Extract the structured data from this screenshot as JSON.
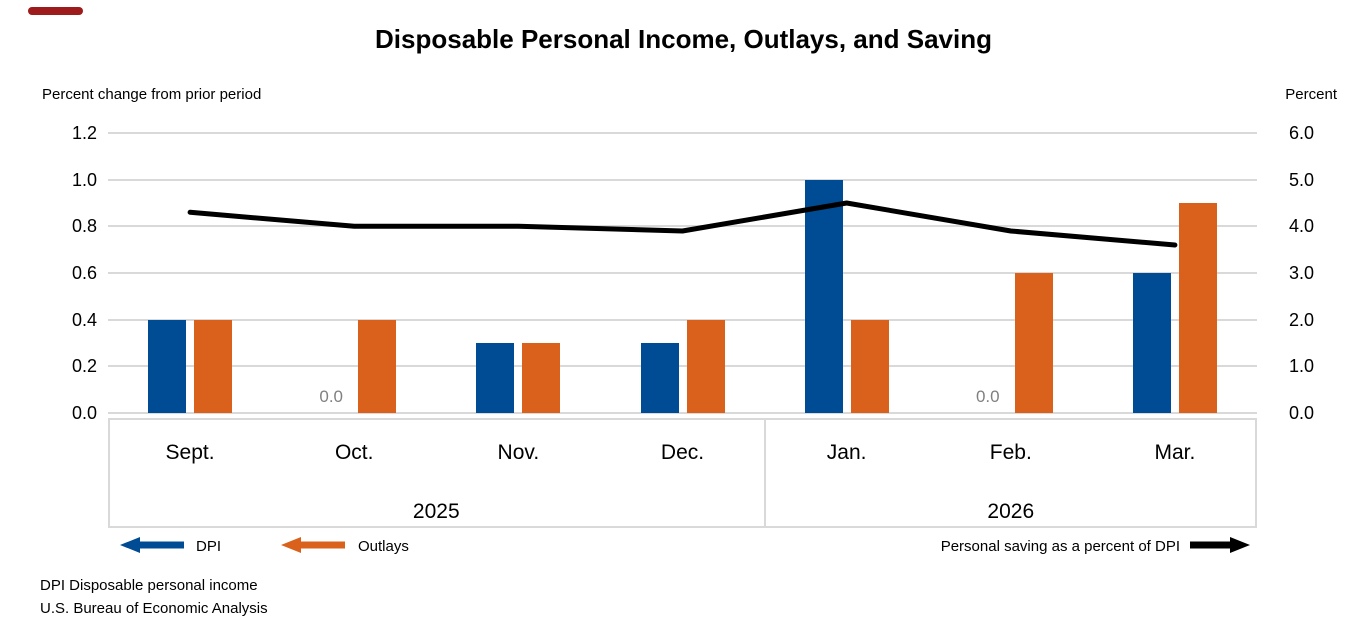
{
  "title": "Disposable Personal Income, Outlays, and Saving",
  "left_axis": {
    "label": "Percent change from prior period",
    "ticks": [
      "1.2",
      "1.0",
      "0.8",
      "0.6",
      "0.4",
      "0.2",
      "0.0"
    ]
  },
  "right_axis": {
    "label": "Percent",
    "ticks": [
      "6.0",
      "5.0",
      "4.0",
      "3.0",
      "2.0",
      "1.0",
      "0.0"
    ]
  },
  "chart_data": {
    "type": "bar",
    "categories": [
      "Sept.",
      "Oct.",
      "Nov.",
      "Dec.",
      "Jan.",
      "Feb.",
      "Mar."
    ],
    "year_groups": [
      {
        "label": "2025",
        "months": 4
      },
      {
        "label": "2026",
        "months": 3
      }
    ],
    "series": [
      {
        "name": "DPI",
        "type": "bar",
        "axis": "left",
        "values": [
          0.4,
          0.0,
          0.3,
          0.3,
          1.0,
          0.0,
          0.6
        ]
      },
      {
        "name": "Outlays",
        "type": "bar",
        "axis": "left",
        "values": [
          0.4,
          0.4,
          0.3,
          0.4,
          0.4,
          0.6,
          0.9
        ]
      },
      {
        "name": "Personal saving as a percent of DPI",
        "type": "line",
        "axis": "right",
        "values": [
          4.3,
          4.0,
          4.0,
          3.9,
          4.5,
          3.9,
          3.6
        ]
      }
    ],
    "left_ylim": [
      0,
      1.2
    ],
    "right_ylim": [
      0,
      6.0
    ],
    "grid": true,
    "zero_value_label": "0.0",
    "legend_position": "bottom"
  },
  "legend": {
    "dpi_label": "DPI",
    "outlays_label": "Outlays",
    "line_label": "Personal saving as a percent of DPI"
  },
  "footnotes": {
    "line1": "DPI Disposable personal income",
    "line2": "U.S. Bureau of Economic Analysis"
  },
  "colors": {
    "dpi_bar": "#004C94",
    "outlays_bar": "#D9611C",
    "saving_line": "#000000",
    "gridline": "#D9D9D9",
    "zero_label": "#808080",
    "accent_dash": "#9E1B1B",
    "text": "#000000"
  }
}
